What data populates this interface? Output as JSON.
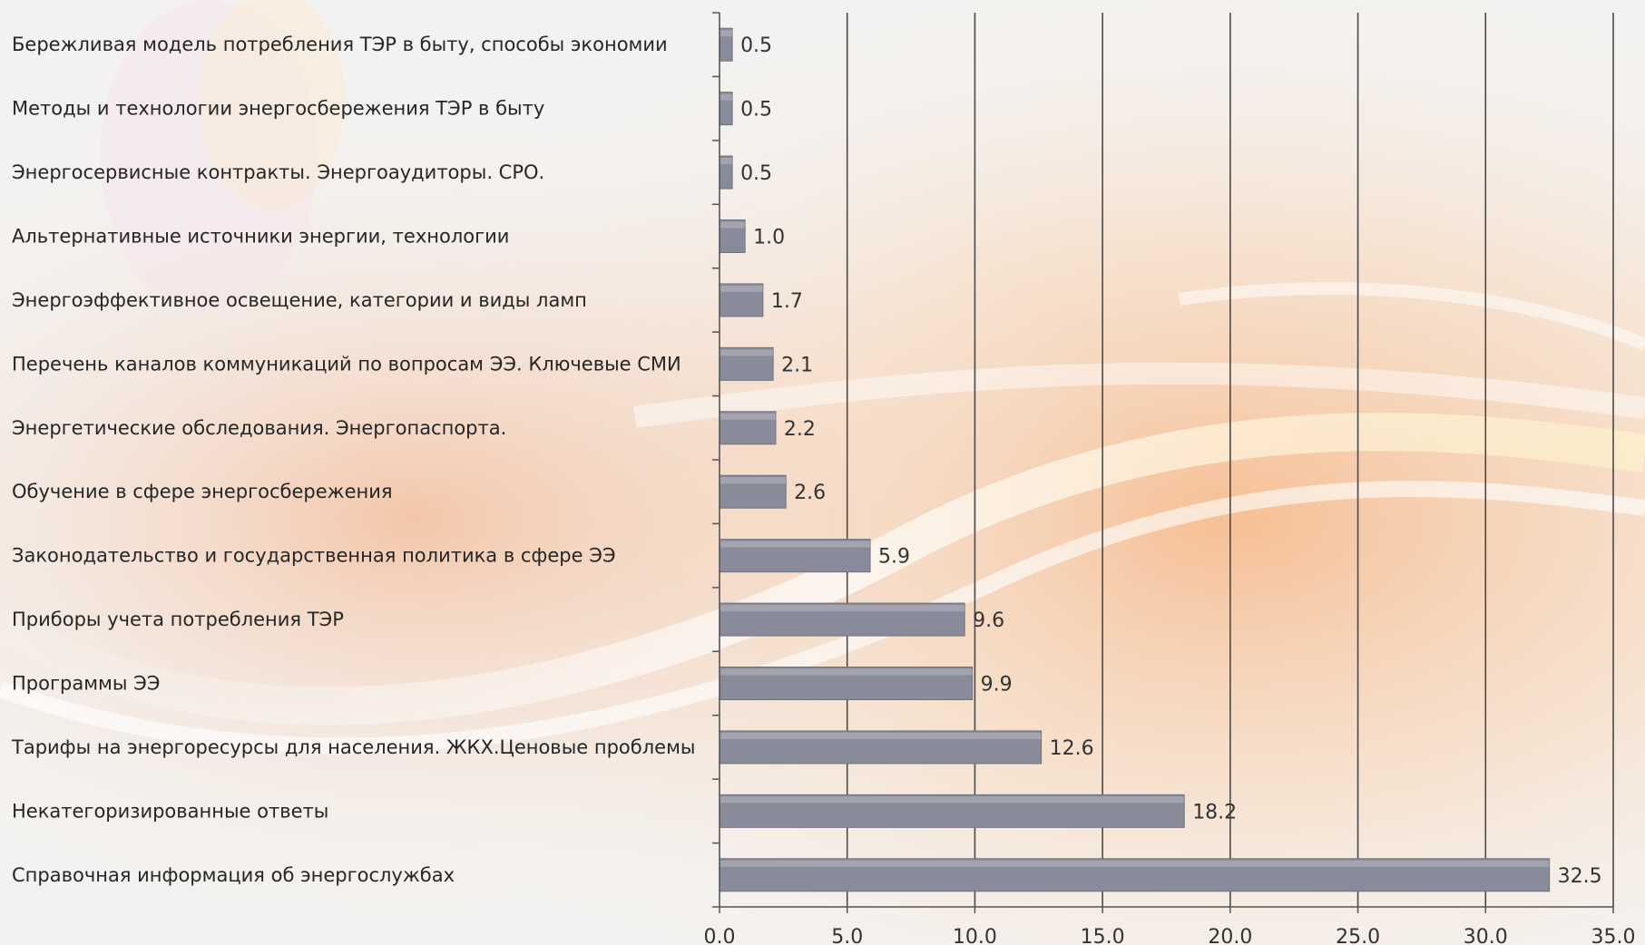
{
  "chart_data": {
    "type": "bar",
    "orientation": "horizontal",
    "categories": [
      "Бережливая модель потребления ТЭР в быту, способы экономии",
      "Методы и технологии энергосбережения ТЭР в быту",
      "Энергосервисные контракты. Энергоаудиторы. СРО.",
      "Альтернативные источники энергии, технологии",
      "Энергоэффективное освещение, категории и виды ламп",
      "Перечень каналов коммуникаций по вопросам ЭЭ. Ключевые СМИ",
      "Энергетические обследования. Энергопаспорта.",
      "Обучение в сфере энергосбережения",
      "Законодательство и государственная политика в сфере ЭЭ",
      "Приборы учета потребления ТЭР",
      "Программы ЭЭ",
      "Тарифы на энергоресурсы для населения. ЖКХ.Ценовые проблемы",
      "Некатегоризированные ответы",
      "Справочная информация об энергослужбах"
    ],
    "values": [
      0.5,
      0.5,
      0.5,
      1.0,
      1.7,
      2.1,
      2.2,
      2.6,
      5.9,
      9.6,
      9.9,
      12.6,
      18.2,
      32.5
    ],
    "value_labels": [
      "0.5",
      "0.5",
      "0.5",
      "1.0",
      "1.7",
      "2.1",
      "2.2",
      "2.6",
      "5.9",
      "9.6",
      "9.9",
      "12.6",
      "18.2",
      "32.5"
    ],
    "xlim": [
      0,
      35
    ],
    "x_ticks": [
      "0.0",
      "5.0",
      "10.0",
      "15.0",
      "20.0",
      "25.0",
      "30.0",
      "35.0"
    ],
    "title": "",
    "xlabel": "",
    "ylabel": "",
    "grid": "vertical",
    "legend": "none",
    "bar_color": "#8a8b9a"
  }
}
